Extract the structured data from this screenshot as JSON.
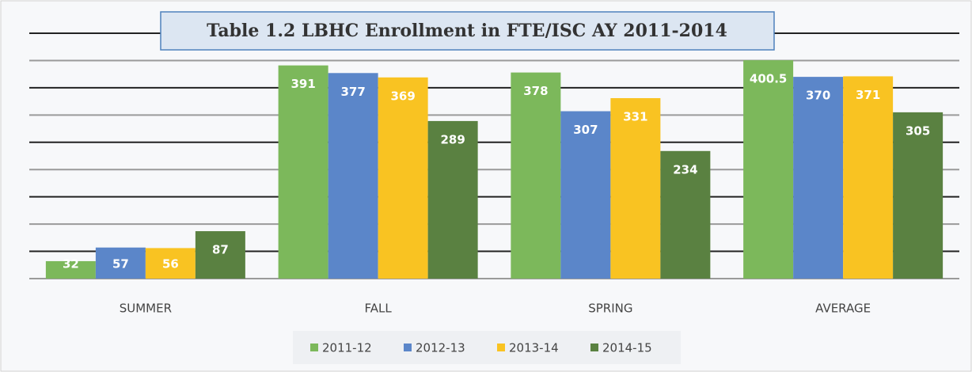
{
  "chart_data": {
    "type": "bar",
    "title": "Table 1.2 LBHC Enrollment in FTE/ISC AY 2011-2014",
    "categories": [
      "SUMMER",
      "FALL",
      "SPRING",
      "AVERAGE"
    ],
    "series": [
      {
        "name": "2011-12",
        "color": "#7cb85b",
        "values": [
          32,
          391,
          378,
          400.5
        ]
      },
      {
        "name": "2012-13",
        "color": "#5b86c9",
        "values": [
          57,
          377,
          307,
          370
        ]
      },
      {
        "name": "2013-14",
        "color": "#f9c322",
        "values": [
          56,
          369,
          331,
          371
        ]
      },
      {
        "name": "2014-15",
        "color": "#5a8141",
        "values": [
          87,
          289,
          234,
          305
        ]
      }
    ],
    "ylim": [
      0,
      450
    ],
    "yticks": [
      0,
      50,
      100,
      150,
      200,
      250,
      300,
      350,
      400,
      450
    ],
    "grid": true,
    "legend": "bottom"
  }
}
